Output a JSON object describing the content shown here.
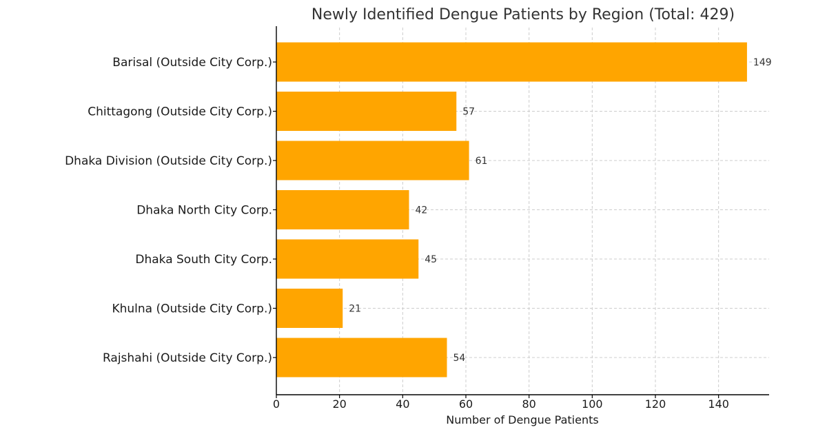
{
  "chart_data": {
    "type": "bar",
    "orientation": "horizontal",
    "title": "Newly Identified Dengue Patients by Region (Total: 429)",
    "xlabel": "Number of Dengue Patients",
    "ylabel": "",
    "categories": [
      "Barisal (Outside City Corp.)",
      "Chittagong (Outside City Corp.)",
      "Dhaka Division (Outside City Corp.)",
      "Dhaka North City Corp.",
      "Dhaka South City Corp.",
      "Khulna (Outside City Corp.)",
      "Rajshahi (Outside City Corp.)"
    ],
    "values": [
      149,
      57,
      61,
      42,
      45,
      21,
      54
    ],
    "value_labels": [
      "149",
      "57",
      "61",
      "42",
      "45",
      "21",
      "54"
    ],
    "xlim": [
      0,
      156
    ],
    "xticks": [
      0,
      20,
      40,
      60,
      80,
      100,
      120,
      140
    ],
    "xtick_labels": [
      "0",
      "20",
      "40",
      "60",
      "80",
      "100",
      "120",
      "140"
    ],
    "grid": true,
    "bar_color": "#FFA500"
  }
}
